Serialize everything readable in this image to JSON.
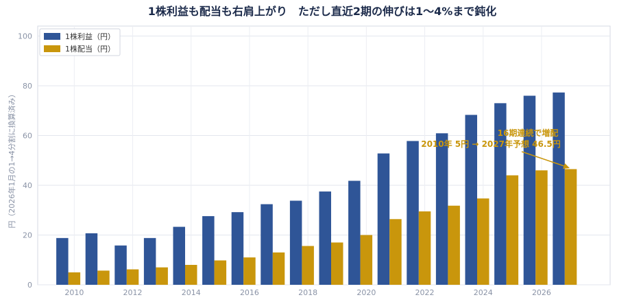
{
  "chart_data": {
    "type": "bar",
    "title": "1株利益も配当も右肩上がり　ただし直近2期の伸びは1〜4%まで鈍化",
    "xlabel": "",
    "ylabel": "円（2026年1月の1→4分割に換算済み）",
    "ylim": [
      0,
      104
    ],
    "yticks": [
      0,
      20,
      40,
      60,
      80,
      100
    ],
    "x": [
      2010,
      2011,
      2012,
      2013,
      2014,
      2015,
      2016,
      2017,
      2018,
      2019,
      2020,
      2021,
      2022,
      2023,
      2024,
      2025,
      2026,
      2027
    ],
    "xticks": [
      2010,
      2012,
      2014,
      2016,
      2018,
      2020,
      2022,
      2024,
      2026
    ],
    "grid": true,
    "legend_position": "top-left",
    "series": [
      {
        "name": "1株利益（円）",
        "color": "#2f5597",
        "values": [
          18.8,
          20.7,
          15.8,
          18.8,
          23.3,
          27.6,
          29.2,
          32.4,
          33.8,
          37.5,
          41.8,
          52.8,
          57.8,
          60.9,
          68.3,
          73.0,
          76.0,
          77.3
        ]
      },
      {
        "name": "1株配当（円）",
        "color": "#c9960c",
        "values": [
          5.0,
          5.7,
          6.2,
          7.0,
          8.0,
          9.8,
          11.0,
          13.0,
          15.6,
          17.0,
          20.0,
          26.4,
          29.5,
          31.8,
          34.7,
          44.0,
          46.0,
          46.5
        ]
      }
    ],
    "annotation": {
      "lines": [
        "16期連続で増配",
        "2010年 5円 → 2027年予想 46.5円"
      ],
      "color": "#c9960c"
    }
  }
}
